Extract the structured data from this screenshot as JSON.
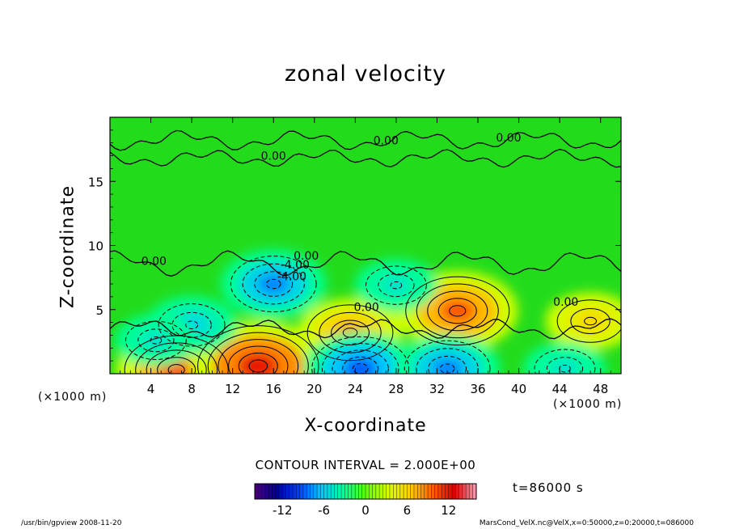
{
  "chart_data": {
    "type": "heatmap",
    "title": "zonal velocity",
    "xlabel": "X-coordinate",
    "ylabel": "Z-coordinate",
    "x_unit_label": "(×1000 m)",
    "y_unit_label": "(×1000 m)",
    "xlim": [
      0,
      50
    ],
    "ylim": [
      0,
      20
    ],
    "x_ticks": [
      4,
      8,
      12,
      16,
      20,
      24,
      28,
      32,
      36,
      40,
      44,
      48
    ],
    "y_ticks": [
      5,
      10,
      15
    ],
    "contour_interval_label": "CONTOUR INTERVAL = 2.000E+00",
    "time_label": "t=86000 s",
    "colorbar": {
      "min": -16,
      "max": 16,
      "ticks": [
        -12,
        -6,
        0,
        6,
        12
      ],
      "colors": [
        "#4a0072",
        "#0000a0",
        "#0040ff",
        "#00c8ff",
        "#00ff9a",
        "#5aff00",
        "#d8ff00",
        "#ffd000",
        "#ff6000",
        "#e00000",
        "#ff9ab0"
      ]
    },
    "contour_labels": [
      {
        "text": "0.00",
        "x": 16,
        "z": 16.7
      },
      {
        "text": "0.00",
        "x": 27,
        "z": 17.9
      },
      {
        "text": "0.00",
        "x": 39,
        "z": 18.1
      },
      {
        "text": "0.00",
        "x": 19.2,
        "z": 8.9
      },
      {
        "text": "-4.00",
        "x": 18.1,
        "z": 8.2
      },
      {
        "text": "-4.00",
        "x": 17.8,
        "z": 7.3
      },
      {
        "text": "0.00",
        "x": 4.3,
        "z": 8.5
      },
      {
        "text": "0.00",
        "x": 25.1,
        "z": 4.9
      },
      {
        "text": "0.00",
        "x": 44.6,
        "z": 5.3
      }
    ],
    "features": [
      {
        "kind": "max",
        "x": 6.5,
        "z": 0.3,
        "value": 10
      },
      {
        "kind": "max",
        "x": 14.5,
        "z": 0.6,
        "value": 12
      },
      {
        "kind": "max",
        "x": 23.5,
        "z": 3.2,
        "value": 8
      },
      {
        "kind": "max",
        "x": 34.0,
        "z": 4.9,
        "value": 10
      },
      {
        "kind": "max",
        "x": 47.0,
        "z": 4.1,
        "value": 6
      },
      {
        "kind": "min",
        "x": 8.0,
        "z": 3.8,
        "value": -6
      },
      {
        "kind": "min",
        "x": 16.0,
        "z": 7.0,
        "value": -8
      },
      {
        "kind": "min",
        "x": 28.0,
        "z": 6.9,
        "value": -5
      },
      {
        "kind": "min",
        "x": 4.5,
        "z": 2.6,
        "value": -5
      },
      {
        "kind": "min",
        "x": 24.5,
        "z": 0.4,
        "value": -9
      },
      {
        "kind": "min",
        "x": 33.0,
        "z": 0.4,
        "value": -8
      },
      {
        "kind": "min",
        "x": 44.5,
        "z": 0.4,
        "value": -5
      }
    ]
  },
  "footer": {
    "left": "/usr/bin/gpview   2008-11-20",
    "right": "MarsCond_VelX.nc@VelX,x=0:50000,z=0:20000,t=086000"
  }
}
